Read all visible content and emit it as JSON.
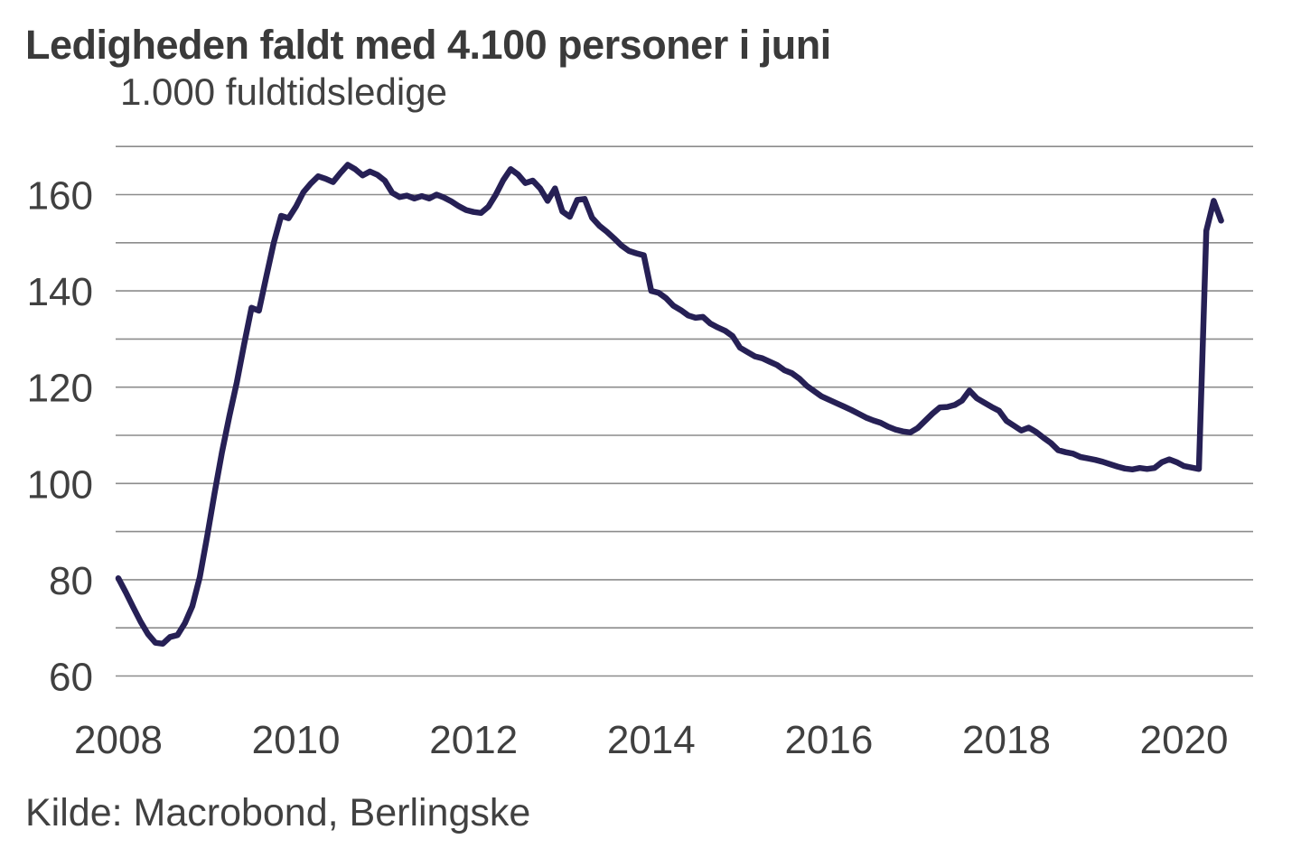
{
  "chart_data": {
    "type": "line",
    "title": "Ledigheden faldt med 4.100 personer i juni",
    "subtitle": "1.000 fuldtidsledige",
    "source": "Kilde: Macrobond, Berlingske",
    "xlabel": "",
    "ylabel": "1.000 fuldtidsledige",
    "x_ticks": [
      2008,
      2010,
      2012,
      2014,
      2016,
      2018,
      2020
    ],
    "y_ticks": [
      60,
      80,
      100,
      120,
      140,
      160
    ],
    "ylim": [
      60,
      170
    ],
    "xlim": [
      2008.0,
      2020.9
    ],
    "gridline_step": 10,
    "grid": "horizontal-only",
    "legend_position": "none",
    "colors": {
      "line": "#262055",
      "gridline": "#8c8c8c",
      "text": "#404040",
      "title": "#3a3a3a",
      "background": "#ffffff"
    },
    "series": [
      {
        "name": "Fuldtidsledige (1.000 personer)",
        "start_year": 2008,
        "frequency": "monthly",
        "values": [
          80.3,
          77.4,
          74.3,
          71.3,
          68.7,
          66.9,
          66.7,
          68.1,
          68.5,
          71.0,
          74.5,
          80.5,
          89.0,
          98.0,
          106.5,
          114.0,
          121.0,
          129.0,
          136.5,
          135.9,
          143.0,
          150.0,
          155.6,
          155.1,
          157.5,
          160.5,
          162.3,
          163.8,
          163.3,
          162.6,
          164.5,
          166.2,
          165.3,
          164.0,
          164.8,
          164.1,
          162.9,
          160.4,
          159.5,
          159.8,
          159.2,
          159.7,
          159.2,
          160.0,
          159.4,
          158.6,
          157.6,
          156.8,
          156.4,
          156.2,
          157.5,
          160.0,
          163.0,
          165.3,
          164.2,
          162.4,
          162.9,
          161.3,
          158.7,
          161.3,
          156.5,
          155.4,
          158.9,
          159.1,
          155.2,
          153.5,
          152.3,
          150.9,
          149.4,
          148.3,
          147.8,
          147.4,
          140.0,
          139.6,
          138.5,
          136.9,
          136.0,
          134.9,
          134.4,
          134.6,
          133.2,
          132.4,
          131.7,
          130.6,
          128.2,
          127.3,
          126.4,
          126.0,
          125.3,
          124.6,
          123.5,
          122.9,
          121.8,
          120.3,
          119.2,
          118.1,
          117.4,
          116.7,
          116.0,
          115.3,
          114.5,
          113.7,
          113.1,
          112.6,
          111.8,
          111.2,
          110.8,
          110.6,
          111.5,
          113.0,
          114.5,
          115.8,
          115.9,
          116.3,
          117.2,
          119.3,
          117.7,
          116.8,
          115.9,
          115.1,
          113.0,
          112.0,
          111.0,
          111.6,
          110.7,
          109.5,
          108.4,
          106.9,
          106.5,
          106.2,
          105.5,
          105.2,
          104.9,
          104.5,
          104.0,
          103.5,
          103.1,
          102.9,
          103.2,
          103.0,
          103.2,
          104.4,
          105.0,
          104.4,
          103.6,
          103.3,
          103.0,
          152.5,
          158.7,
          154.6
        ]
      }
    ]
  }
}
